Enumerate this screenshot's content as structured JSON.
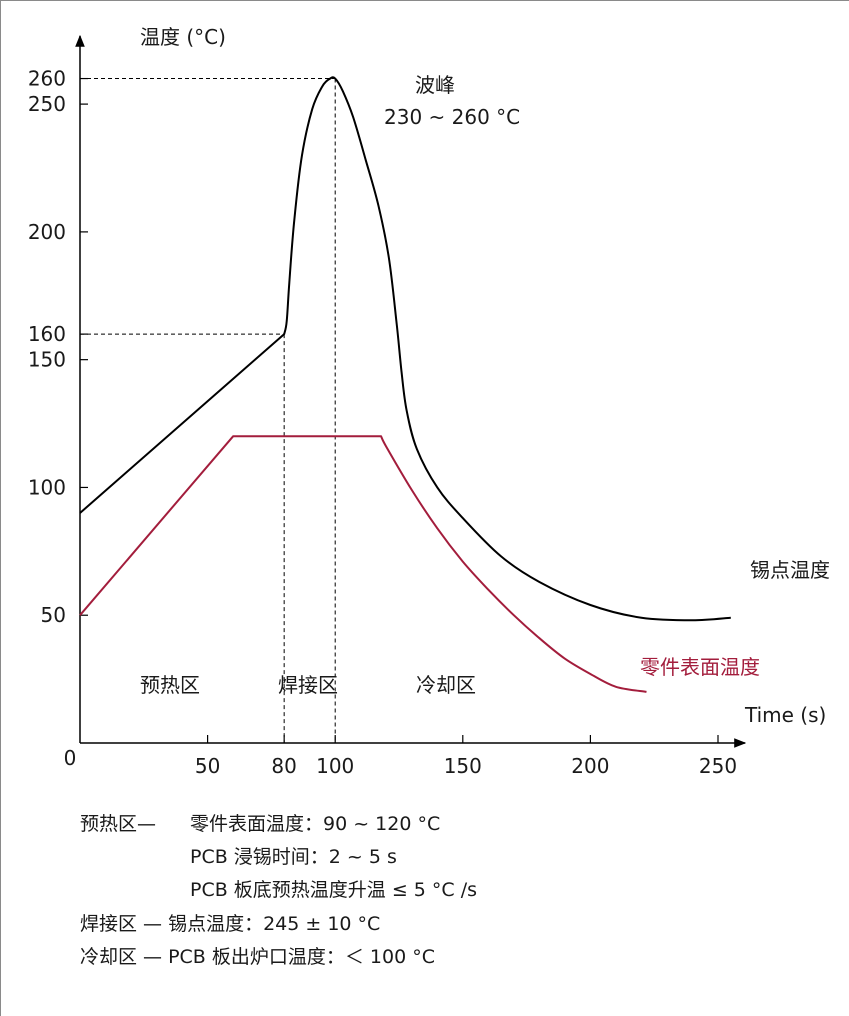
{
  "chart_data": {
    "type": "line",
    "title": "",
    "xlabel": "Time (s)",
    "ylabel": "温度 (°C)",
    "xlim": [
      0,
      250
    ],
    "ylim": [
      0,
      270
    ],
    "x_ticks": [
      0,
      50,
      80,
      100,
      150,
      200,
      250
    ],
    "y_ticks": [
      50,
      100,
      150,
      160,
      200,
      250,
      260
    ],
    "grid": false,
    "series": [
      {
        "name": "锡点温度",
        "color": "#000000",
        "x": [
          0,
          80,
          81,
          82,
          84,
          87,
          91,
          95,
          98,
          100,
          103,
          107,
          112,
          117,
          121,
          124,
          126,
          128,
          132,
          140,
          150,
          165,
          180,
          200,
          220,
          240,
          255
        ],
        "y": [
          90,
          160,
          165,
          180,
          205,
          230,
          248,
          257,
          260,
          260,
          255,
          245,
          228,
          210,
          190,
          165,
          145,
          130,
          115,
          100,
          88,
          73,
          63,
          54,
          49,
          48,
          49
        ]
      },
      {
        "name": "零件表面温度",
        "color": "#a31d3c",
        "x": [
          0,
          60,
          118,
          120,
          130,
          140,
          150,
          160,
          170,
          180,
          190,
          200,
          210,
          222
        ],
        "y": [
          50,
          120,
          120,
          116,
          99,
          84,
          71,
          60,
          50,
          41,
          33,
          27,
          22,
          20
        ]
      }
    ],
    "annotations": {
      "peak_title": "波峰",
      "peak_range": "230 ~ 260 °C",
      "zones": [
        "预热区",
        "焊接区",
        "冷却区"
      ],
      "reference_lines": [
        {
          "x": 80,
          "y": 160
        },
        {
          "x": 100,
          "y": 260
        }
      ]
    }
  },
  "notes": {
    "preheat_title": "预热区—",
    "preheat_line1": "零件表面温度：90 ~ 120 °C",
    "preheat_line2": "PCB 浸锡时间：2 ~ 5 s",
    "preheat_line3": "PCB 板底预热温度升温 ≤ 5 °C /s",
    "soldering": "焊接区 — 锡点温度：245 ± 10 °C",
    "cooling": "冷却区 — PCB 板出炉口温度：＜ 100 °C"
  }
}
